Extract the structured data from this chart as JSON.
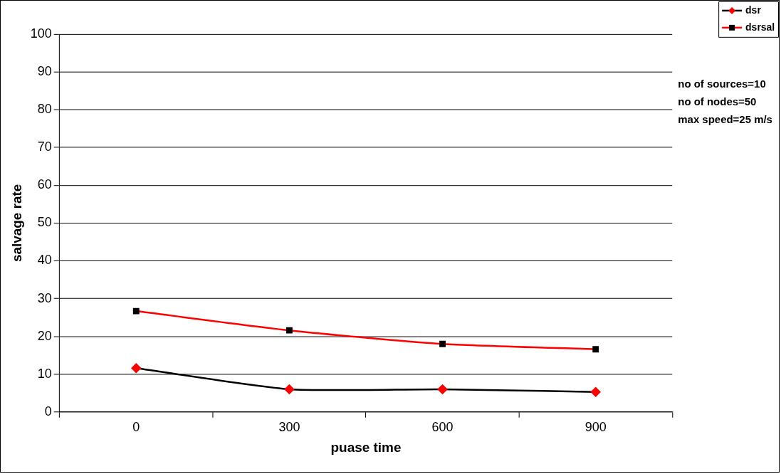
{
  "chart_data": {
    "type": "line",
    "categories": [
      "0",
      "300",
      "600",
      "900"
    ],
    "series": [
      {
        "name": "dsr",
        "color": "#000000",
        "colors": [
          "#ff0000",
          "#ff0000",
          "#ff0000",
          "#ff0000"
        ],
        "marker": "diamond",
        "values": [
          11.6,
          6.0,
          6.0,
          5.3
        ]
      },
      {
        "name": "dsrsal",
        "color": "#ff0000",
        "colors": [
          "#000000",
          "#000000",
          "#000000",
          "#000000"
        ],
        "marker": "square",
        "values": [
          26.7,
          21.6,
          18.0,
          16.6
        ]
      }
    ],
    "xlabel": "puase time",
    "ylabel": "salvage rate",
    "ylim": [
      0,
      100
    ],
    "yticks": [
      0,
      10,
      20,
      30,
      40,
      50,
      60,
      70,
      80,
      90,
      100
    ],
    "grid": "y",
    "legend": "top right",
    "line_style": "solid",
    "annotations": [
      "no of sources=10",
      "no of nodes=50",
      "max speed=25 m/s"
    ]
  }
}
